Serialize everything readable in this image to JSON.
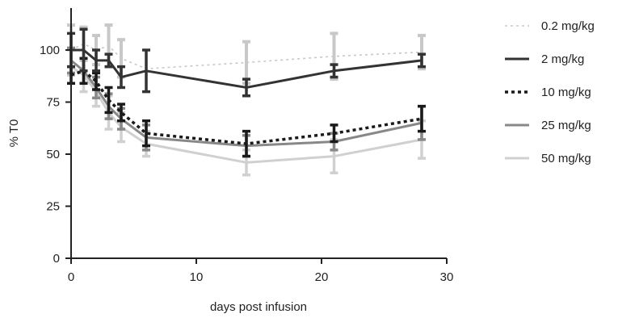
{
  "chart_data": {
    "type": "line",
    "title": "",
    "xlabel": "days post infusion",
    "ylabel": "% T0",
    "xlim": [
      0,
      30
    ],
    "ylim": [
      0,
      115
    ],
    "x_ticks": [
      "0",
      "10",
      "20",
      "30"
    ],
    "y_ticks": [
      "0",
      "25",
      "50",
      "75",
      "100"
    ],
    "grid": false,
    "legend_position": "right",
    "x": [
      0,
      1,
      2,
      3,
      4,
      6,
      14,
      21,
      28
    ],
    "series": [
      {
        "name": "0.2 mg/kg",
        "color": "#c8c8c8",
        "dash": "dotted-thin",
        "values": [
          100,
          103,
          100,
          102,
          96,
          91,
          94,
          97,
          99
        ],
        "error": [
          12,
          8,
          7,
          10,
          9,
          0,
          10,
          11,
          8
        ]
      },
      {
        "name": "2 mg/kg",
        "color": "#333333",
        "dash": "solid",
        "values": [
          100,
          100,
          95,
          95,
          87,
          90,
          82,
          90,
          95
        ],
        "error": [
          8,
          10,
          5,
          3,
          5,
          10,
          4,
          3,
          3
        ]
      },
      {
        "name": "10 mg/kg",
        "color": "#1a1a1a",
        "dash": "dotted-thick",
        "values": [
          88,
          90,
          85,
          76,
          70,
          60,
          55,
          60,
          67
        ],
        "error": [
          4,
          6,
          4,
          6,
          4,
          6,
          6,
          4,
          6
        ]
      },
      {
        "name": "25 mg/kg",
        "color": "#888888",
        "dash": "solid",
        "values": [
          95,
          90,
          82,
          73,
          67,
          58,
          54,
          56,
          65
        ],
        "error": [
          6,
          6,
          5,
          6,
          5,
          6,
          5,
          4,
          8
        ]
      },
      {
        "name": "50 mg/kg",
        "color": "#d0d0d0",
        "dash": "solid",
        "values": [
          92,
          88,
          80,
          70,
          63,
          55,
          46,
          49,
          57
        ],
        "error": [
          8,
          8,
          7,
          8,
          7,
          6,
          6,
          8,
          9
        ]
      }
    ]
  }
}
